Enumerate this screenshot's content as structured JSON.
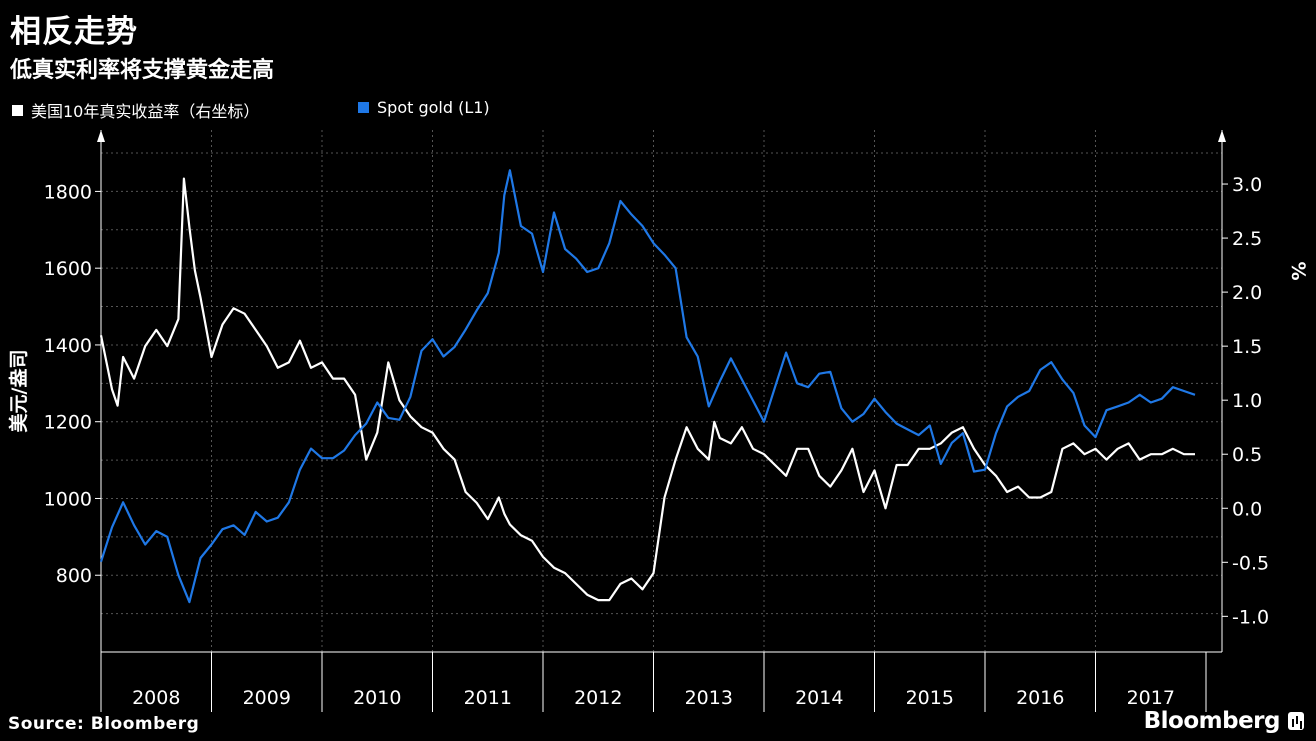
{
  "header": {
    "title": "相反走势",
    "subtitle": "低真实利率将支撑黄金走高"
  },
  "legend": [
    {
      "label": "美国10年真实收益率（右坐标）",
      "color": "#ffffff"
    },
    {
      "label": "Spot gold (L1)",
      "color": "#1f78e6"
    }
  ],
  "footer": {
    "source": "Source: Bloomberg",
    "brand": "Bloomberg"
  },
  "chart_data": {
    "type": "line",
    "title": "相反走势",
    "x_ticks": [
      "2008",
      "2009",
      "2010",
      "2011",
      "2012",
      "2013",
      "2014",
      "2015",
      "2016",
      "2017"
    ],
    "x_range": [
      2008.0,
      2017.95
    ],
    "left_axis": {
      "label": "美元/盎司",
      "ticks": [
        "800",
        "1000",
        "1200",
        "1400",
        "1600",
        "1800"
      ],
      "range": [
        600,
        1960
      ]
    },
    "right_axis": {
      "label": "%",
      "ticks": [
        "-1.0",
        "-0.5",
        "0.0",
        "0.5",
        "1.0",
        "1.5",
        "2.0",
        "2.5",
        "3.0"
      ],
      "range": [
        -1.33,
        3.5
      ]
    },
    "series": [
      {
        "name": "Spot gold (L1)",
        "axis": "left",
        "color": "#1f78e6",
        "x": [
          2008.0,
          2008.1,
          2008.2,
          2008.3,
          2008.4,
          2008.5,
          2008.6,
          2008.7,
          2008.8,
          2008.9,
          2009.0,
          2009.1,
          2009.2,
          2009.3,
          2009.4,
          2009.5,
          2009.6,
          2009.7,
          2009.8,
          2009.9,
          2010.0,
          2010.1,
          2010.2,
          2010.3,
          2010.4,
          2010.5,
          2010.6,
          2010.7,
          2010.8,
          2010.9,
          2011.0,
          2011.1,
          2011.2,
          2011.3,
          2011.4,
          2011.5,
          2011.6,
          2011.65,
          2011.7,
          2011.8,
          2011.9,
          2012.0,
          2012.1,
          2012.2,
          2012.3,
          2012.4,
          2012.5,
          2012.6,
          2012.7,
          2012.8,
          2012.9,
          2013.0,
          2013.1,
          2013.2,
          2013.3,
          2013.4,
          2013.5,
          2013.6,
          2013.7,
          2013.8,
          2013.9,
          2014.0,
          2014.1,
          2014.2,
          2014.3,
          2014.4,
          2014.5,
          2014.6,
          2014.7,
          2014.8,
          2014.9,
          2015.0,
          2015.1,
          2015.2,
          2015.3,
          2015.4,
          2015.5,
          2015.6,
          2015.7,
          2015.8,
          2015.9,
          2016.0,
          2016.1,
          2016.2,
          2016.3,
          2016.4,
          2016.5,
          2016.6,
          2016.7,
          2016.8,
          2016.9,
          2017.0,
          2017.1,
          2017.2,
          2017.3,
          2017.4,
          2017.5,
          2017.6,
          2017.7,
          2017.8,
          2017.9
        ],
        "values": [
          835,
          925,
          990,
          930,
          880,
          915,
          900,
          800,
          730,
          845,
          880,
          920,
          930,
          905,
          965,
          940,
          950,
          990,
          1075,
          1130,
          1105,
          1105,
          1125,
          1165,
          1195,
          1250,
          1210,
          1205,
          1265,
          1385,
          1415,
          1370,
          1395,
          1440,
          1490,
          1535,
          1640,
          1790,
          1855,
          1710,
          1690,
          1590,
          1745,
          1650,
          1625,
          1590,
          1600,
          1665,
          1775,
          1740,
          1710,
          1665,
          1635,
          1600,
          1420,
          1370,
          1240,
          1305,
          1365,
          1310,
          1255,
          1200,
          1290,
          1380,
          1300,
          1290,
          1325,
          1330,
          1235,
          1200,
          1220,
          1260,
          1225,
          1195,
          1180,
          1165,
          1190,
          1090,
          1145,
          1170,
          1070,
          1075,
          1170,
          1240,
          1265,
          1280,
          1335,
          1355,
          1310,
          1275,
          1190,
          1160,
          1230,
          1240,
          1250,
          1270,
          1250,
          1260,
          1290,
          1280,
          1270
        ]
      },
      {
        "name": "美国10年真实收益率（右坐标）",
        "axis": "right",
        "color": "#ffffff",
        "x": [
          2008.0,
          2008.1,
          2008.15,
          2008.2,
          2008.3,
          2008.4,
          2008.5,
          2008.6,
          2008.7,
          2008.75,
          2008.8,
          2008.85,
          2008.9,
          2009.0,
          2009.1,
          2009.2,
          2009.3,
          2009.4,
          2009.5,
          2009.6,
          2009.7,
          2009.8,
          2009.9,
          2010.0,
          2010.1,
          2010.2,
          2010.3,
          2010.4,
          2010.5,
          2010.6,
          2010.7,
          2010.8,
          2010.9,
          2011.0,
          2011.1,
          2011.2,
          2011.3,
          2011.4,
          2011.5,
          2011.6,
          2011.65,
          2011.7,
          2011.8,
          2011.9,
          2012.0,
          2012.1,
          2012.2,
          2012.3,
          2012.4,
          2012.5,
          2012.6,
          2012.7,
          2012.8,
          2012.9,
          2013.0,
          2013.1,
          2013.2,
          2013.3,
          2013.4,
          2013.5,
          2013.55,
          2013.6,
          2013.7,
          2013.8,
          2013.9,
          2014.0,
          2014.1,
          2014.2,
          2014.3,
          2014.4,
          2014.5,
          2014.6,
          2014.7,
          2014.8,
          2014.9,
          2015.0,
          2015.1,
          2015.2,
          2015.3,
          2015.4,
          2015.5,
          2015.6,
          2015.7,
          2015.8,
          2015.9,
          2016.0,
          2016.1,
          2016.2,
          2016.3,
          2016.4,
          2016.5,
          2016.6,
          2016.7,
          2016.8,
          2016.9,
          2017.0,
          2017.1,
          2017.2,
          2017.3,
          2017.4,
          2017.5,
          2017.6,
          2017.7,
          2017.8,
          2017.9
        ],
        "values": [
          1.6,
          1.1,
          0.95,
          1.4,
          1.2,
          1.5,
          1.65,
          1.5,
          1.75,
          3.05,
          2.6,
          2.2,
          1.95,
          1.4,
          1.7,
          1.85,
          1.8,
          1.65,
          1.5,
          1.3,
          1.35,
          1.55,
          1.3,
          1.35,
          1.2,
          1.2,
          1.05,
          0.45,
          0.7,
          1.35,
          1.0,
          0.85,
          0.75,
          0.7,
          0.55,
          0.45,
          0.15,
          0.05,
          -0.1,
          0.1,
          -0.05,
          -0.15,
          -0.25,
          -0.3,
          -0.45,
          -0.55,
          -0.6,
          -0.7,
          -0.8,
          -0.85,
          -0.85,
          -0.7,
          -0.65,
          -0.75,
          -0.6,
          0.1,
          0.45,
          0.75,
          0.55,
          0.45,
          0.8,
          0.65,
          0.6,
          0.75,
          0.55,
          0.5,
          0.4,
          0.3,
          0.55,
          0.55,
          0.3,
          0.2,
          0.35,
          0.55,
          0.15,
          0.35,
          0.0,
          0.4,
          0.4,
          0.55,
          0.55,
          0.6,
          0.7,
          0.75,
          0.55,
          0.4,
          0.3,
          0.15,
          0.2,
          0.1,
          0.1,
          0.15,
          0.55,
          0.6,
          0.5,
          0.55,
          0.45,
          0.55,
          0.6,
          0.45,
          0.5,
          0.5,
          0.55,
          0.5,
          0.5
        ]
      }
    ]
  }
}
